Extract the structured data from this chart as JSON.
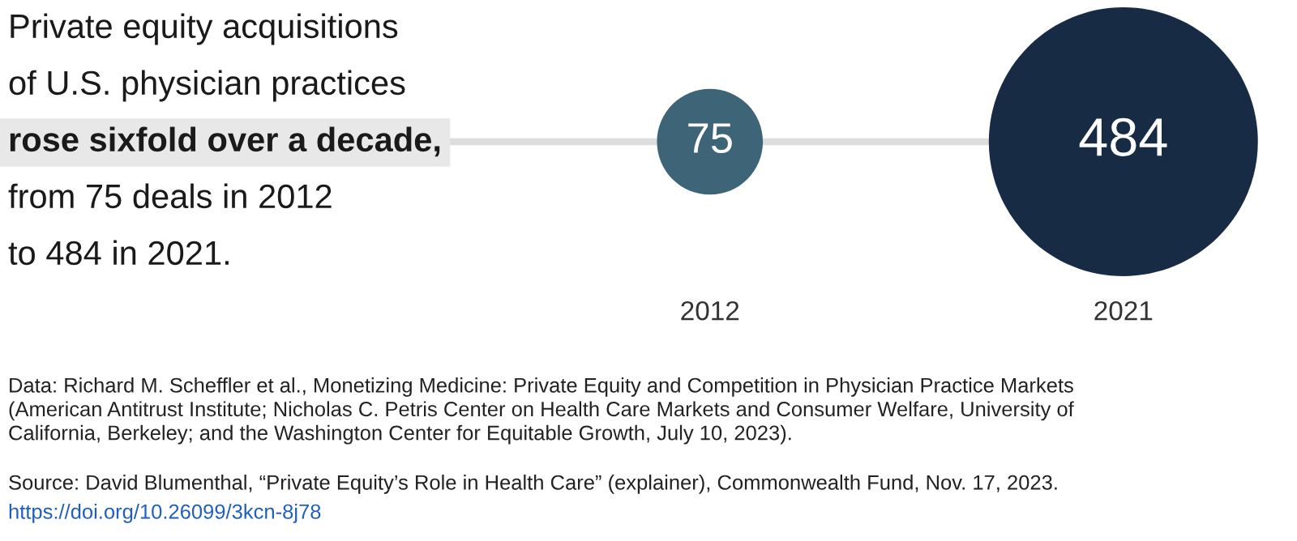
{
  "chart_data": {
    "type": "other",
    "title": "Private equity acquisitions\nof U.S. physician practices\nrose sixfold over a decade,\nfrom 75 deals in 2012\nto 484 in 2021.",
    "categories": [
      "2012",
      "2021"
    ],
    "values": [
      75,
      484
    ],
    "colors": [
      "#3d6577",
      "#172b45"
    ],
    "data_labels": true,
    "annotations": [
      "Data: Richard M. Scheffler et al., Monetizing Medicine: Private Equity and Competition in Physician Practice Markets\n(American Antitrust Institute; Nicholas C. Petris Center on Health Care Markets and Consumer Welfare, University of\nCalifornia, Berkeley; and the Washington Center for Equitable Growth, July 10, 2023).",
      "Source: David Blumenthal, “Private Equity’s Role in Health Care” (explainer), Commonwealth Fund, Nov. 17, 2023.",
      "https://doi.org/10.26099/3kcn-8j78"
    ]
  }
}
